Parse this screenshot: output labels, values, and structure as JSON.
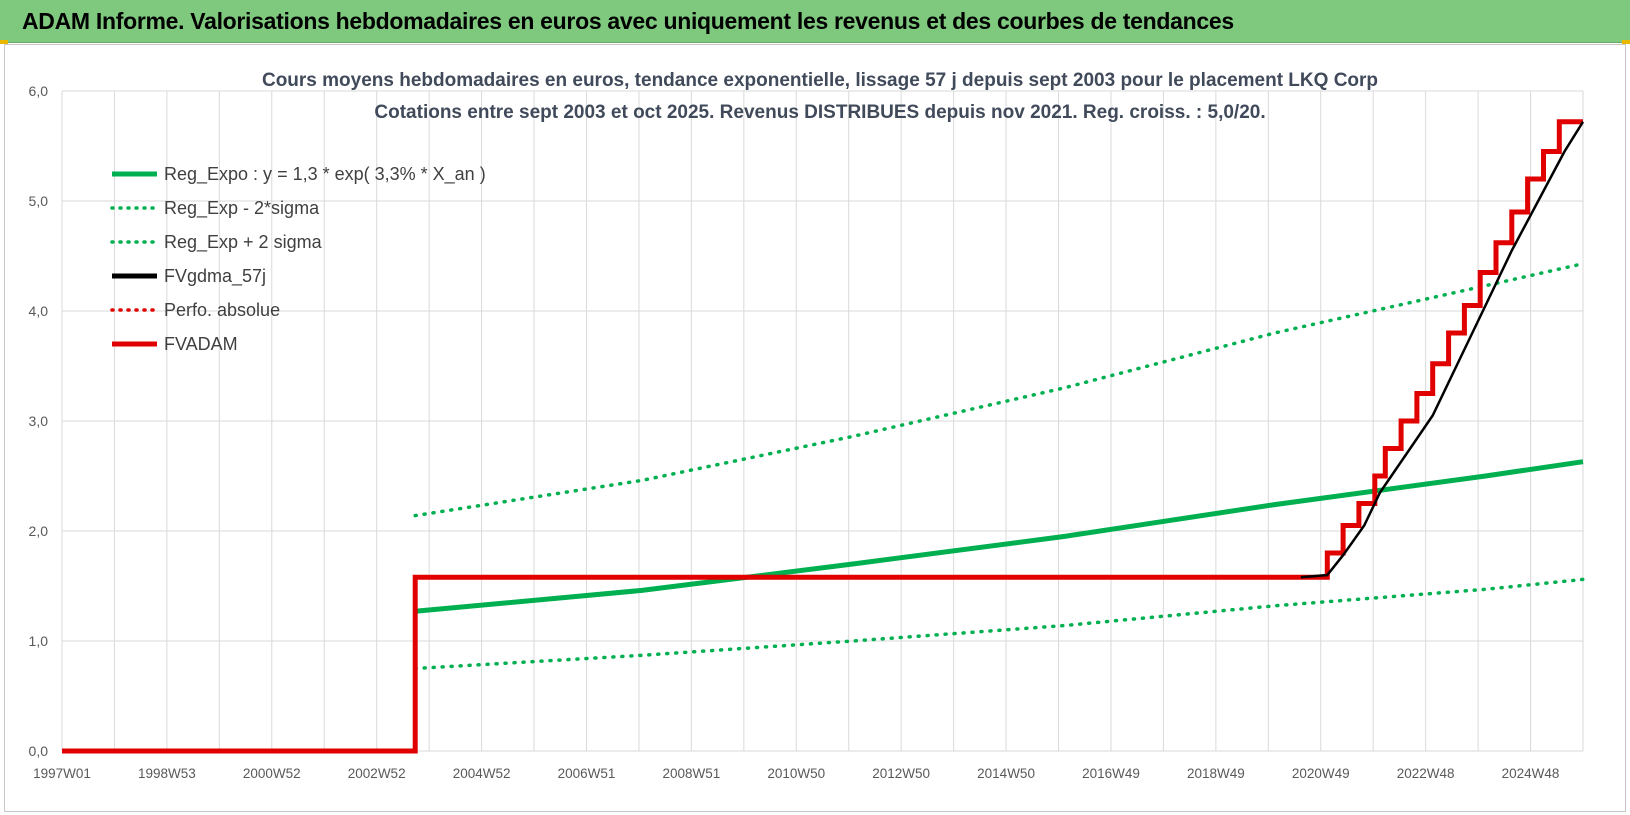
{
  "header": {
    "title": "ADAM Informe. Valorisations hebdomadaires en euros avec uniquement les revenus et des courbes de tendances"
  },
  "colors": {
    "header_bg": "#7fc97f",
    "green": "#00b050",
    "red": "#e00000",
    "black": "#000000"
  },
  "chart_data": {
    "type": "line",
    "title": "Cours moyens hebdomadaires en euros, tendance exponentielle, lissage 57 j depuis sept 2003 pour le placement LKQ Corp",
    "subtitle": "Cotations entre sept 2003 et oct 2025. Revenus DISTRIBUES depuis nov 2021. Reg. croiss. : 5,0/20.",
    "xlabel": "",
    "ylabel": "",
    "ylim": [
      0,
      6
    ],
    "y_ticks": [
      "0,0",
      "1,0",
      "2,0",
      "3,0",
      "4,0",
      "5,0",
      "6,0"
    ],
    "x_ticks": [
      "1997W01",
      "1998W53",
      "2000W52",
      "2002W52",
      "2004W52",
      "2006W51",
      "2008W51",
      "2010W50",
      "2012W50",
      "2014W50",
      "2016W49",
      "2018W49",
      "2020W49",
      "2022W48",
      "2024W48"
    ],
    "xlim": [
      1997.0,
      2025.85
    ],
    "grid": true,
    "legend_position": "top-left",
    "series": [
      {
        "name": "Reg_Expo : y = 1,3 * exp( 3,3% *  X_an )",
        "color": "#00b050",
        "style": "solid",
        "x": [
          2003.7,
          2008.0,
          2012.0,
          2016.0,
          2020.0,
          2024.0,
          2025.85
        ],
        "y": [
          1.27,
          1.46,
          1.7,
          1.95,
          2.24,
          2.5,
          2.63
        ]
      },
      {
        "name": "Reg_Exp - 2*sigma",
        "color": "#00b050",
        "style": "dotted",
        "x": [
          2003.7,
          2008.0,
          2012.0,
          2016.0,
          2020.0,
          2024.0,
          2025.85
        ],
        "y": [
          0.75,
          0.87,
          1.0,
          1.14,
          1.32,
          1.47,
          1.56
        ]
      },
      {
        "name": "Reg_Exp + 2 sigma",
        "color": "#00b050",
        "style": "dotted",
        "x": [
          2003.7,
          2008.0,
          2012.0,
          2016.0,
          2020.0,
          2024.0,
          2025.85
        ],
        "y": [
          2.14,
          2.46,
          2.86,
          3.3,
          3.8,
          4.23,
          4.43
        ]
      },
      {
        "name": "FVgdma_57j",
        "color": "#000000",
        "style": "solid",
        "x": [
          2020.5,
          2021.0,
          2021.3,
          2021.7,
          2022.0,
          2022.5,
          2023.0,
          2023.5,
          2024.0,
          2024.5,
          2025.0,
          2025.5,
          2025.85
        ],
        "y": [
          1.58,
          1.6,
          1.78,
          2.05,
          2.35,
          2.7,
          3.05,
          3.55,
          4.05,
          4.55,
          5.0,
          5.45,
          5.72
        ]
      },
      {
        "name": "Perfo. absolue",
        "color": "#e00000",
        "style": "dotted",
        "x": [],
        "y": []
      },
      {
        "name": "FVADAM",
        "color": "#e00000",
        "style": "solid",
        "x": [
          1997.0,
          2003.7,
          2003.7,
          2021.0,
          2021.0,
          2021.3,
          2021.3,
          2021.6,
          2021.6,
          2021.9,
          2021.9,
          2022.1,
          2022.1,
          2022.4,
          2022.4,
          2022.7,
          2022.7,
          2023.0,
          2023.0,
          2023.3,
          2023.3,
          2023.6,
          2023.6,
          2023.9,
          2023.9,
          2024.2,
          2024.2,
          2024.5,
          2024.5,
          2024.8,
          2024.8,
          2025.1,
          2025.1,
          2025.4,
          2025.4,
          2025.6,
          2025.6,
          2025.85
        ],
        "y": [
          0.0,
          0.0,
          1.58,
          1.58,
          1.8,
          1.8,
          2.05,
          2.05,
          2.25,
          2.25,
          2.5,
          2.5,
          2.75,
          2.75,
          3.0,
          3.0,
          3.25,
          3.25,
          3.52,
          3.52,
          3.8,
          3.8,
          4.05,
          4.05,
          4.35,
          4.35,
          4.62,
          4.62,
          4.9,
          4.9,
          5.2,
          5.2,
          5.45,
          5.45,
          5.72,
          5.72,
          5.72,
          5.72
        ]
      }
    ]
  }
}
